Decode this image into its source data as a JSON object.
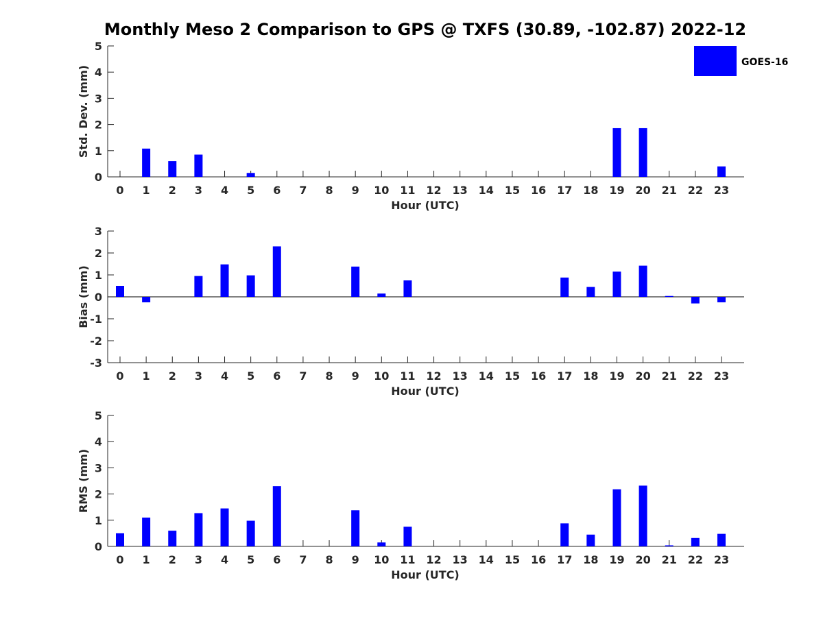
{
  "chart_data": [
    {
      "type": "bar",
      "title": "Monthly Meso 2 Comparison to GPS @ TXFS (30.89, -102.87) 2022-12",
      "xlabel": "Hour (UTC)",
      "ylabel": "Std. Dev. (mm)",
      "ylim": [
        0,
        5
      ],
      "yticks": [
        0,
        1,
        2,
        3,
        4,
        5
      ],
      "categories": [
        "0",
        "1",
        "2",
        "3",
        "4",
        "5",
        "6",
        "7",
        "8",
        "9",
        "10",
        "11",
        "12",
        "13",
        "14",
        "15",
        "16",
        "17",
        "18",
        "19",
        "20",
        "21",
        "22",
        "23"
      ],
      "series": [
        {
          "name": "GOES-16",
          "values": [
            null,
            1.08,
            0.6,
            0.85,
            null,
            0.15,
            null,
            null,
            null,
            null,
            null,
            null,
            null,
            null,
            null,
            null,
            null,
            null,
            null,
            1.86,
            1.86,
            null,
            null,
            0.4
          ]
        }
      ],
      "legend": {
        "position": "top-right",
        "entries": [
          "GOES-16"
        ]
      },
      "grid": false,
      "bar_color": "#0000ff"
    },
    {
      "type": "bar",
      "title": "",
      "xlabel": "Hour (UTC)",
      "ylabel": "Bias (mm)",
      "ylim": [
        -3,
        3
      ],
      "yticks": [
        -3,
        -2,
        -1,
        0,
        1,
        2,
        3
      ],
      "categories": [
        "0",
        "1",
        "2",
        "3",
        "4",
        "5",
        "6",
        "7",
        "8",
        "9",
        "10",
        "11",
        "12",
        "13",
        "14",
        "15",
        "16",
        "17",
        "18",
        "19",
        "20",
        "21",
        "22",
        "23"
      ],
      "series": [
        {
          "name": "GOES-16",
          "values": [
            0.5,
            -0.25,
            null,
            0.95,
            1.48,
            0.98,
            2.3,
            null,
            null,
            1.38,
            0.15,
            0.75,
            null,
            null,
            null,
            null,
            null,
            0.88,
            0.45,
            1.15,
            1.42,
            0.04,
            -0.3,
            -0.25
          ]
        }
      ],
      "grid": false,
      "bar_color": "#0000ff"
    },
    {
      "type": "bar",
      "title": "",
      "xlabel": "Hour (UTC)",
      "ylabel": "RMS (mm)",
      "ylim": [
        0,
        5
      ],
      "yticks": [
        0,
        1,
        2,
        3,
        4,
        5
      ],
      "categories": [
        "0",
        "1",
        "2",
        "3",
        "4",
        "5",
        "6",
        "7",
        "8",
        "9",
        "10",
        "11",
        "12",
        "13",
        "14",
        "15",
        "16",
        "17",
        "18",
        "19",
        "20",
        "21",
        "22",
        "23"
      ],
      "series": [
        {
          "name": "GOES-16",
          "values": [
            0.5,
            1.1,
            0.6,
            1.27,
            1.45,
            0.98,
            2.3,
            null,
            null,
            1.38,
            0.15,
            0.75,
            null,
            null,
            null,
            null,
            null,
            0.88,
            0.45,
            2.18,
            2.32,
            0.04,
            0.32,
            0.48
          ]
        }
      ],
      "grid": false,
      "bar_color": "#0000ff"
    }
  ]
}
